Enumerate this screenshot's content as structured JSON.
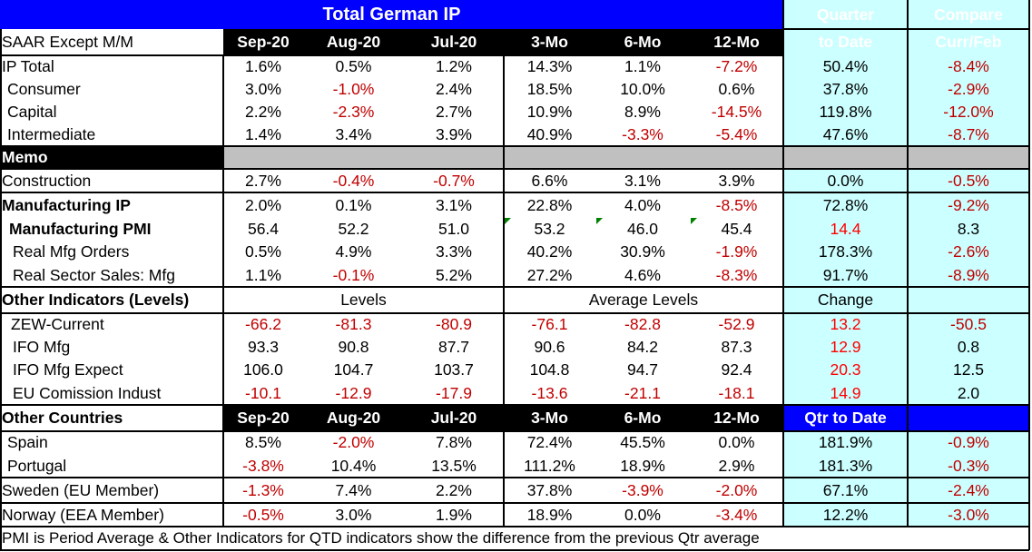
{
  "title": "Total German IP",
  "header": {
    "col0": "SAAR Except M/M",
    "months": [
      "Sep-20",
      "Aug-20",
      "Jul-20"
    ],
    "periods": [
      "3-Mo",
      "6-Mo",
      "12-Mo"
    ],
    "qtd_line1": "Quarter",
    "qtd_line2": "to Date",
    "cmp_line1": "Compare",
    "cmp_line2": "Curr/Feb"
  },
  "rows": [
    {
      "label": "IP Total",
      "values": [
        "1.6%",
        "0.5%",
        "1.2%",
        "14.3%",
        "1.1%",
        "-7.2%",
        "50.4%",
        "-8.4%"
      ]
    },
    {
      "label": "Consumer",
      "values": [
        "3.0%",
        "-1.0%",
        "2.4%",
        "18.5%",
        "10.0%",
        "0.6%",
        "37.8%",
        "-2.9%"
      ]
    },
    {
      "label": "Capital",
      "values": [
        "2.2%",
        "-2.3%",
        "2.7%",
        "10.9%",
        "8.9%",
        "-14.5%",
        "119.8%",
        "-12.0%"
      ]
    },
    {
      "label": "Intermediate",
      "values": [
        "1.4%",
        "3.4%",
        "3.9%",
        "40.9%",
        "-3.3%",
        "-5.4%",
        "47.6%",
        "-8.7%"
      ]
    },
    {
      "label": "Memo",
      "values": []
    },
    {
      "label": "Construction",
      "values": [
        "2.7%",
        "-0.4%",
        "-0.7%",
        "6.6%",
        "3.1%",
        "3.9%",
        "0.0%",
        "-0.5%"
      ]
    },
    {
      "label": "Manufacturing IP",
      "values": [
        "2.0%",
        "0.1%",
        "3.1%",
        "22.8%",
        "4.0%",
        "-8.5%",
        "72.8%",
        "-9.2%"
      ]
    },
    {
      "label": "Manufacturing PMI",
      "values": [
        "56.4",
        "52.2",
        "51.0",
        "53.2",
        "46.0",
        "45.4",
        "14.4",
        "8.3"
      ]
    },
    {
      "label": "Real Mfg Orders",
      "values": [
        "0.5%",
        "4.9%",
        "3.3%",
        "40.2%",
        "30.9%",
        "-1.9%",
        "178.3%",
        "-2.6%"
      ]
    },
    {
      "label": "Real Sector Sales: Mfg",
      "values": [
        "1.1%",
        "-0.1%",
        "5.2%",
        "27.2%",
        "4.6%",
        "-8.3%",
        "91.7%",
        "-8.9%"
      ]
    },
    {
      "label": "Other Indicators (Levels)",
      "values": [],
      "levels": "Levels",
      "avg": "Average Levels",
      "change": "Change"
    },
    {
      "label": "ZEW-Current",
      "values": [
        "-66.2",
        "-81.3",
        "-80.9",
        "-76.1",
        "-82.8",
        "-52.9",
        "13.2",
        "-50.5"
      ]
    },
    {
      "label": "IFO Mfg",
      "values": [
        "93.3",
        "90.8",
        "87.7",
        "90.6",
        "84.2",
        "87.3",
        "12.9",
        "0.8"
      ]
    },
    {
      "label": "IFO Mfg Expect",
      "values": [
        "106.0",
        "104.7",
        "103.7",
        "104.8",
        "94.7",
        "92.4",
        "20.3",
        "12.5"
      ]
    },
    {
      "label": "EU Comission Indust",
      "values": [
        "-10.1",
        "-12.9",
        "-17.9",
        "-13.6",
        "-21.1",
        "-18.1",
        "14.9",
        "2.0"
      ]
    },
    {
      "label": "Other Countries",
      "values": [],
      "months": [
        "Sep-20",
        "Aug-20",
        "Jul-20"
      ],
      "periods": [
        "3-Mo",
        "6-Mo",
        "12-Mo"
      ],
      "qtd": "Qtr to Date"
    },
    {
      "label": "Spain",
      "values": [
        "8.5%",
        "-2.0%",
        "7.8%",
        "72.4%",
        "45.5%",
        "0.0%",
        "181.9%",
        "-0.9%"
      ]
    },
    {
      "label": "Portugal",
      "values": [
        "-3.8%",
        "10.4%",
        "13.5%",
        "111.2%",
        "18.9%",
        "2.9%",
        "181.3%",
        "-0.3%"
      ]
    },
    {
      "label": "Sweden (EU Member)",
      "values": [
        "-1.3%",
        "7.4%",
        "2.2%",
        "37.8%",
        "-3.9%",
        "-2.0%",
        "67.1%",
        "-2.4%"
      ]
    },
    {
      "label": "Norway (EEA Member)",
      "values": [
        "-0.5%",
        "3.0%",
        "1.9%",
        "18.9%",
        "0.0%",
        "-3.4%",
        "12.2%",
        "-3.0%"
      ]
    }
  ],
  "footnote": "PMI is Period Average & Other Indicators for QTD indicators show the difference from the previous Qtr average",
  "colors": {
    "title_bg": "#0000ff",
    "header_bg": "#000000",
    "qtd_bg": "#ccffff",
    "memo_bg": "#c0c0c0",
    "negative": "#c00000",
    "highlight": "#ff0000"
  }
}
